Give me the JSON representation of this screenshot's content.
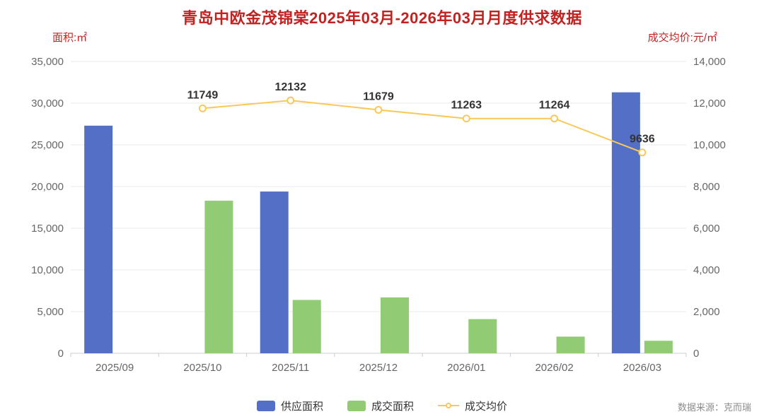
{
  "title": "青岛中欧金茂锦棠2025年03月-2026年03月月度供求数据",
  "left_axis_name": "面积:㎡",
  "right_axis_name": "成交均价:元/㎡",
  "source": "数据来源：克而瑞",
  "colors": {
    "title": "#c22222",
    "supply_bar": "#5470c6",
    "deal_bar": "#91cc75",
    "price_line": "#fac858",
    "axis_text": "#666666",
    "grid": "#e8e8e8",
    "axis_line": "#cccccc",
    "label": "#333333",
    "source_text": "#8c8c8c"
  },
  "legend": [
    {
      "label": "供应面积",
      "type": "bar",
      "color": "#5470c6"
    },
    {
      "label": "成交面积",
      "type": "bar",
      "color": "#91cc75"
    },
    {
      "label": "成交均价",
      "type": "line",
      "color": "#fac858"
    }
  ],
  "chart_data": {
    "type": "bar+line",
    "title": "青岛中欧金茂锦棠2025年03月-2026年03月月度供求数据",
    "categories": [
      "2025/09",
      "2025/10",
      "2025/11",
      "2025/12",
      "2026/01",
      "2026/02",
      "2026/03"
    ],
    "series": [
      {
        "name": "供应面积",
        "type": "bar",
        "axis": "left",
        "color": "#5470c6",
        "values": [
          27300,
          0,
          19400,
          0,
          0,
          0,
          31300
        ]
      },
      {
        "name": "成交面积",
        "type": "bar",
        "axis": "left",
        "color": "#91cc75",
        "values": [
          0,
          18300,
          6400,
          6700,
          4100,
          2000,
          1500
        ]
      },
      {
        "name": "成交均价",
        "type": "line",
        "axis": "right",
        "color": "#fac858",
        "values": [
          null,
          11749,
          12132,
          11679,
          11263,
          11264,
          9636
        ],
        "show_labels": true
      }
    ],
    "left_axis": {
      "name": "面积:㎡",
      "min": 0,
      "max": 35000,
      "step": 5000
    },
    "right_axis": {
      "name": "成交均价:元/㎡",
      "min": 0,
      "max": 14000,
      "step": 2000
    },
    "grid": true,
    "legend_position": "bottom"
  }
}
